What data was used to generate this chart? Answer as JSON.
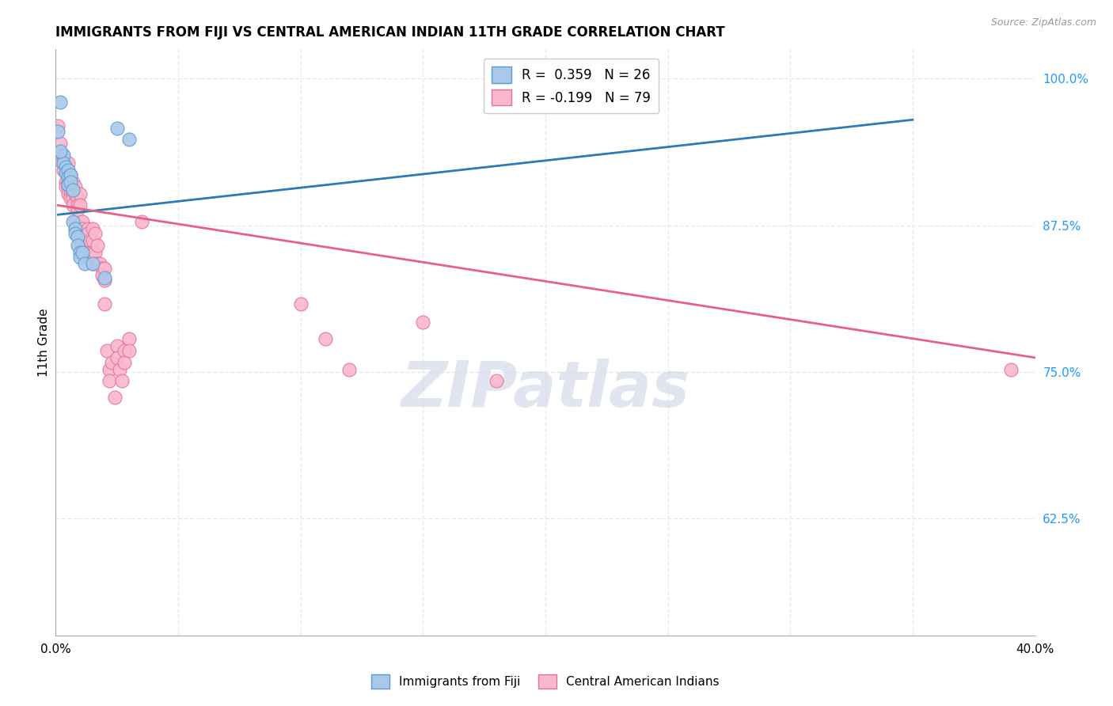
{
  "title": "IMMIGRANTS FROM FIJI VS CENTRAL AMERICAN INDIAN 11TH GRADE CORRELATION CHART",
  "source": "Source: ZipAtlas.com",
  "ylabel": "11th Grade",
  "xlim": [
    0.0,
    0.4
  ],
  "ylim": [
    0.525,
    1.025
  ],
  "xticks": [
    0.0,
    0.05,
    0.1,
    0.15,
    0.2,
    0.25,
    0.3,
    0.35,
    0.4
  ],
  "yticks_right": [
    0.625,
    0.75,
    0.875,
    1.0
  ],
  "ytick_right_labels": [
    "62.5%",
    "75.0%",
    "87.5%",
    "100.0%"
  ],
  "fiji_R": 0.359,
  "fiji_N": 26,
  "ca_indian_R": -0.199,
  "ca_indian_N": 79,
  "fiji_color": "#aac9e8",
  "fiji_edge": "#5b9bd5",
  "ca_color": "#f9b8cb",
  "ca_edge": "#e87099",
  "fiji_line_color": "#2c7bb6",
  "ca_line_color": "#e8608a",
  "fiji_line_x": [
    0.001,
    0.35
  ],
  "fiji_line_y": [
    0.884,
    0.965
  ],
  "ca_line_x": [
    0.001,
    0.4
  ],
  "ca_line_y": [
    0.892,
    0.762
  ],
  "fiji_scatter": [
    [
      0.001,
      0.955
    ],
    [
      0.002,
      0.98
    ],
    [
      0.003,
      0.935
    ],
    [
      0.003,
      0.928
    ],
    [
      0.004,
      0.925
    ],
    [
      0.004,
      0.92
    ],
    [
      0.005,
      0.922
    ],
    [
      0.005,
      0.916
    ],
    [
      0.005,
      0.91
    ],
    [
      0.006,
      0.918
    ],
    [
      0.006,
      0.912
    ],
    [
      0.007,
      0.905
    ],
    [
      0.007,
      0.878
    ],
    [
      0.008,
      0.872
    ],
    [
      0.008,
      0.868
    ],
    [
      0.009,
      0.865
    ],
    [
      0.009,
      0.858
    ],
    [
      0.01,
      0.852
    ],
    [
      0.01,
      0.848
    ],
    [
      0.011,
      0.852
    ],
    [
      0.012,
      0.842
    ],
    [
      0.015,
      0.842
    ],
    [
      0.02,
      0.83
    ],
    [
      0.025,
      0.958
    ],
    [
      0.03,
      0.948
    ],
    [
      0.002,
      0.938
    ]
  ],
  "ca_scatter": [
    [
      0.001,
      0.96
    ],
    [
      0.002,
      0.945
    ],
    [
      0.002,
      0.93
    ],
    [
      0.003,
      0.932
    ],
    [
      0.003,
      0.922
    ],
    [
      0.004,
      0.92
    ],
    [
      0.004,
      0.912
    ],
    [
      0.004,
      0.908
    ],
    [
      0.005,
      0.928
    ],
    [
      0.005,
      0.918
    ],
    [
      0.005,
      0.912
    ],
    [
      0.005,
      0.908
    ],
    [
      0.005,
      0.902
    ],
    [
      0.006,
      0.918
    ],
    [
      0.006,
      0.912
    ],
    [
      0.006,
      0.908
    ],
    [
      0.006,
      0.902
    ],
    [
      0.006,
      0.898
    ],
    [
      0.007,
      0.912
    ],
    [
      0.007,
      0.908
    ],
    [
      0.007,
      0.902
    ],
    [
      0.007,
      0.898
    ],
    [
      0.007,
      0.892
    ],
    [
      0.008,
      0.908
    ],
    [
      0.008,
      0.902
    ],
    [
      0.008,
      0.878
    ],
    [
      0.008,
      0.872
    ],
    [
      0.009,
      0.898
    ],
    [
      0.009,
      0.892
    ],
    [
      0.009,
      0.888
    ],
    [
      0.009,
      0.872
    ],
    [
      0.009,
      0.868
    ],
    [
      0.01,
      0.902
    ],
    [
      0.01,
      0.892
    ],
    [
      0.01,
      0.872
    ],
    [
      0.01,
      0.862
    ],
    [
      0.011,
      0.878
    ],
    [
      0.011,
      0.872
    ],
    [
      0.012,
      0.868
    ],
    [
      0.012,
      0.862
    ],
    [
      0.012,
      0.852
    ],
    [
      0.013,
      0.872
    ],
    [
      0.013,
      0.868
    ],
    [
      0.013,
      0.858
    ],
    [
      0.014,
      0.862
    ],
    [
      0.014,
      0.852
    ],
    [
      0.015,
      0.872
    ],
    [
      0.015,
      0.862
    ],
    [
      0.015,
      0.852
    ],
    [
      0.015,
      0.842
    ],
    [
      0.016,
      0.868
    ],
    [
      0.016,
      0.852
    ],
    [
      0.017,
      0.858
    ],
    [
      0.017,
      0.842
    ],
    [
      0.018,
      0.842
    ],
    [
      0.019,
      0.838
    ],
    [
      0.019,
      0.832
    ],
    [
      0.02,
      0.838
    ],
    [
      0.02,
      0.828
    ],
    [
      0.02,
      0.808
    ],
    [
      0.021,
      0.768
    ],
    [
      0.022,
      0.752
    ],
    [
      0.022,
      0.742
    ],
    [
      0.023,
      0.758
    ],
    [
      0.024,
      0.728
    ],
    [
      0.025,
      0.772
    ],
    [
      0.025,
      0.762
    ],
    [
      0.026,
      0.752
    ],
    [
      0.027,
      0.742
    ],
    [
      0.028,
      0.768
    ],
    [
      0.028,
      0.758
    ],
    [
      0.03,
      0.778
    ],
    [
      0.03,
      0.768
    ],
    [
      0.035,
      0.878
    ],
    [
      0.1,
      0.808
    ],
    [
      0.11,
      0.778
    ],
    [
      0.12,
      0.752
    ],
    [
      0.15,
      0.792
    ],
    [
      0.18,
      0.742
    ],
    [
      0.39,
      0.752
    ]
  ],
  "background": "#ffffff",
  "grid_color": "#e8e8e8",
  "watermark_text": "ZIPatlas",
  "watermark_color": "#ccd5e5"
}
